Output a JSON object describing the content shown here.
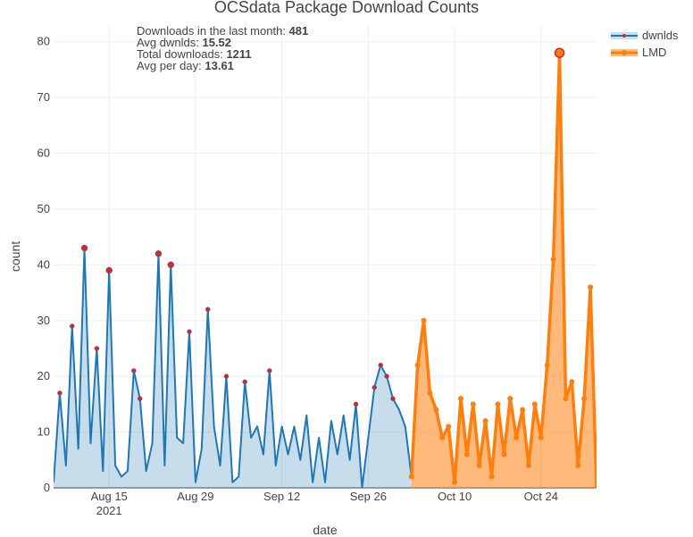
{
  "chart_data": {
    "type": "area",
    "title": "OCSdata Package Download Counts",
    "xlabel": "date",
    "ylabel": "count",
    "ylim": [
      0,
      83
    ],
    "xlim": [
      "2021-08-06",
      "2021-11-02"
    ],
    "yticks": [
      0,
      10,
      20,
      30,
      40,
      50,
      60,
      70,
      80
    ],
    "xticks": [
      {
        "date": "2021-08-15",
        "label": "Aug 15",
        "sublabel": "2021"
      },
      {
        "date": "2021-08-29",
        "label": "Aug 29",
        "sublabel": ""
      },
      {
        "date": "2021-09-12",
        "label": "Sep 12",
        "sublabel": ""
      },
      {
        "date": "2021-09-26",
        "label": "Sep 26",
        "sublabel": ""
      },
      {
        "date": "2021-10-10",
        "label": "Oct 10",
        "sublabel": ""
      },
      {
        "date": "2021-10-24",
        "label": "Oct 24",
        "sublabel": ""
      }
    ],
    "grid": true,
    "legend": "top-right",
    "series": [
      {
        "name": "dwnlds",
        "color": "#1f77b4",
        "fill": "rgba(31,119,180,0.25)",
        "start": "2021-08-06",
        "values": [
          1,
          17,
          4,
          29,
          7,
          43,
          8,
          25,
          3,
          39,
          4,
          2,
          3,
          21,
          16,
          3,
          8,
          42,
          4,
          40,
          9,
          8,
          28,
          1,
          7,
          32,
          11,
          4,
          20,
          1,
          2,
          19,
          9,
          11,
          6,
          21,
          4,
          11,
          6,
          11,
          5,
          13,
          1,
          9,
          1,
          12,
          6,
          13,
          5,
          15,
          0,
          9,
          18,
          22,
          20,
          16,
          14,
          11,
          2
        ]
      },
      {
        "name": "LMD",
        "color": "#ff7f0e",
        "fill": "rgba(255,127,14,0.55)",
        "start": "2021-10-03",
        "values": [
          2,
          22,
          30,
          17,
          14,
          9,
          11,
          1,
          16,
          6,
          15,
          4,
          12,
          2,
          15,
          6,
          16,
          9,
          14,
          4,
          15,
          9,
          22,
          41,
          78,
          16,
          19,
          4,
          16,
          36,
          0
        ]
      }
    ],
    "annotations": [
      {
        "label": "Downloads in the last month:",
        "value": "481"
      },
      {
        "label": "Avg dwnlds:",
        "value": "15.52"
      },
      {
        "label": "Total downloads:",
        "value": "1211"
      },
      {
        "label": "Avg per day:",
        "value": "13.61"
      }
    ]
  }
}
